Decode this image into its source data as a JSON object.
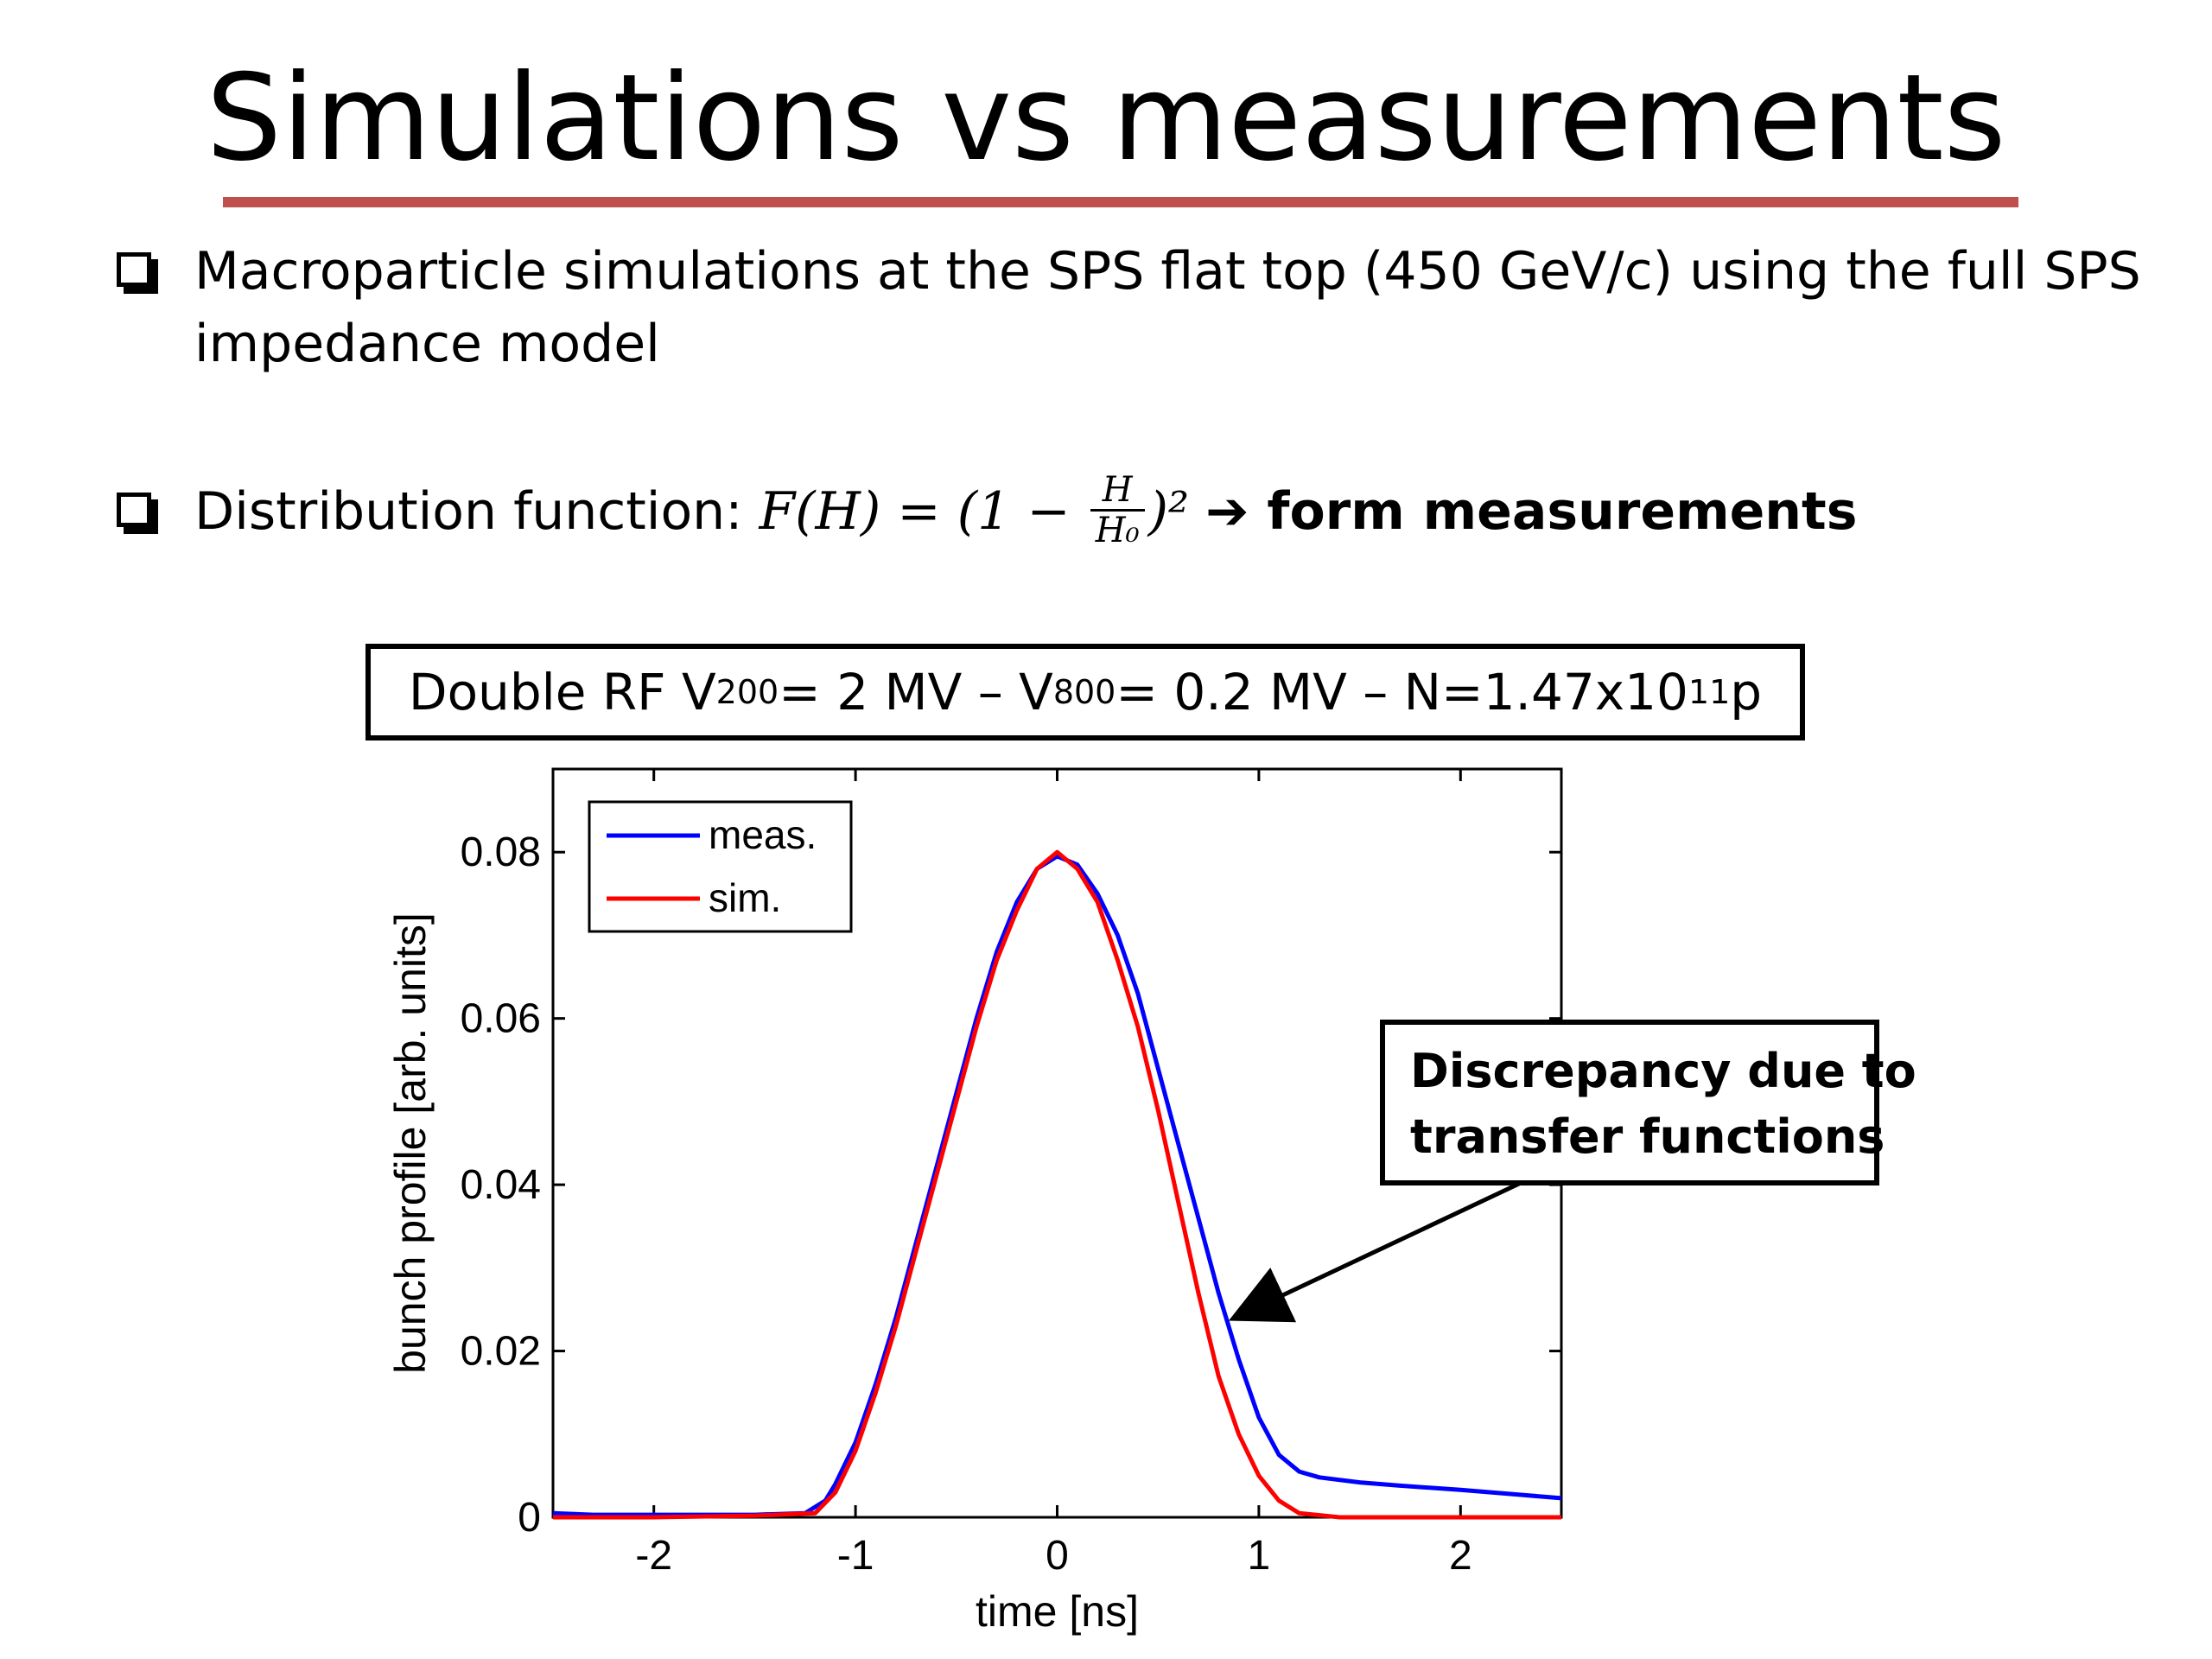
{
  "slide": {
    "title": "Simulations vs measurements",
    "bullets": [
      "Macroparticle simulations at the SPS flat top (450 GeV/c) using the full SPS",
      "impedance model"
    ],
    "distribution": {
      "label": "Distribution function: ",
      "formula_lhs": "F(H) = (1 − ",
      "num": "H",
      "den": "H₀",
      "formula_rhs": ")²",
      "arrow": "➔ ",
      "bold_text": "form measurements"
    },
    "caption": {
      "p1": "Double RF V",
      "sub1": "200",
      "p2": " = 2 MV – V",
      "sub2": "800",
      "p3": " = 0.2 MV – N=1.47x10",
      "sup": "11",
      "p4": " p"
    },
    "annotation": [
      "Discrepancy due to",
      "transfer functions"
    ]
  },
  "colors": {
    "meas": "#0000ff",
    "sim": "#ff0000",
    "title_rule": "#c0504d"
  },
  "chart_data": {
    "type": "line",
    "xlabel": "time [ns]",
    "ylabel": "bunch profile [arb. units]",
    "xlim": [
      -2.5,
      2.5
    ],
    "ylim": [
      0,
      0.09
    ],
    "xticks": [
      -2,
      -1,
      0,
      1,
      2
    ],
    "xtick_labels": [
      "-2",
      "-1",
      "0",
      "1",
      "2"
    ],
    "yticks": [
      0,
      0.02,
      0.04,
      0.06,
      0.08
    ],
    "ytick_labels": [
      "0",
      "0.02",
      "0.04",
      "0.06",
      "0.08"
    ],
    "legend_position": "top-left",
    "grid": false,
    "series": [
      {
        "name": "meas.",
        "color": "#0000ff",
        "x": [
          -2.5,
          -2.3,
          -1.5,
          -1.25,
          -1.15,
          -1.1,
          -1.0,
          -0.9,
          -0.8,
          -0.7,
          -0.6,
          -0.5,
          -0.4,
          -0.3,
          -0.2,
          -0.1,
          0.0,
          0.1,
          0.2,
          0.3,
          0.4,
          0.5,
          0.6,
          0.7,
          0.8,
          0.9,
          1.0,
          1.1,
          1.2,
          1.3,
          1.5,
          1.7,
          2.0,
          2.3,
          2.5
        ],
        "y": [
          0.0005,
          0.0003,
          0.0003,
          0.0005,
          0.002,
          0.004,
          0.009,
          0.016,
          0.024,
          0.033,
          0.042,
          0.051,
          0.06,
          0.068,
          0.074,
          0.078,
          0.0795,
          0.0785,
          0.075,
          0.07,
          0.063,
          0.054,
          0.045,
          0.036,
          0.027,
          0.019,
          0.012,
          0.0075,
          0.0055,
          0.0048,
          0.0042,
          0.0038,
          0.0033,
          0.0027,
          0.0023
        ]
      },
      {
        "name": "sim.",
        "color": "#ff0000",
        "x": [
          -2.5,
          -2.0,
          -1.5,
          -1.2,
          -1.1,
          -1.0,
          -0.9,
          -0.8,
          -0.7,
          -0.6,
          -0.5,
          -0.4,
          -0.3,
          -0.2,
          -0.1,
          0.0,
          0.1,
          0.2,
          0.3,
          0.4,
          0.5,
          0.6,
          0.7,
          0.8,
          0.9,
          1.0,
          1.1,
          1.2,
          1.4,
          2.0,
          2.5
        ],
        "y": [
          0.0,
          0.0,
          0.0002,
          0.0005,
          0.003,
          0.008,
          0.015,
          0.023,
          0.032,
          0.041,
          0.05,
          0.059,
          0.067,
          0.073,
          0.078,
          0.08,
          0.078,
          0.074,
          0.067,
          0.059,
          0.049,
          0.038,
          0.027,
          0.017,
          0.01,
          0.005,
          0.002,
          0.0005,
          0.0,
          0.0,
          0.0
        ]
      }
    ]
  }
}
